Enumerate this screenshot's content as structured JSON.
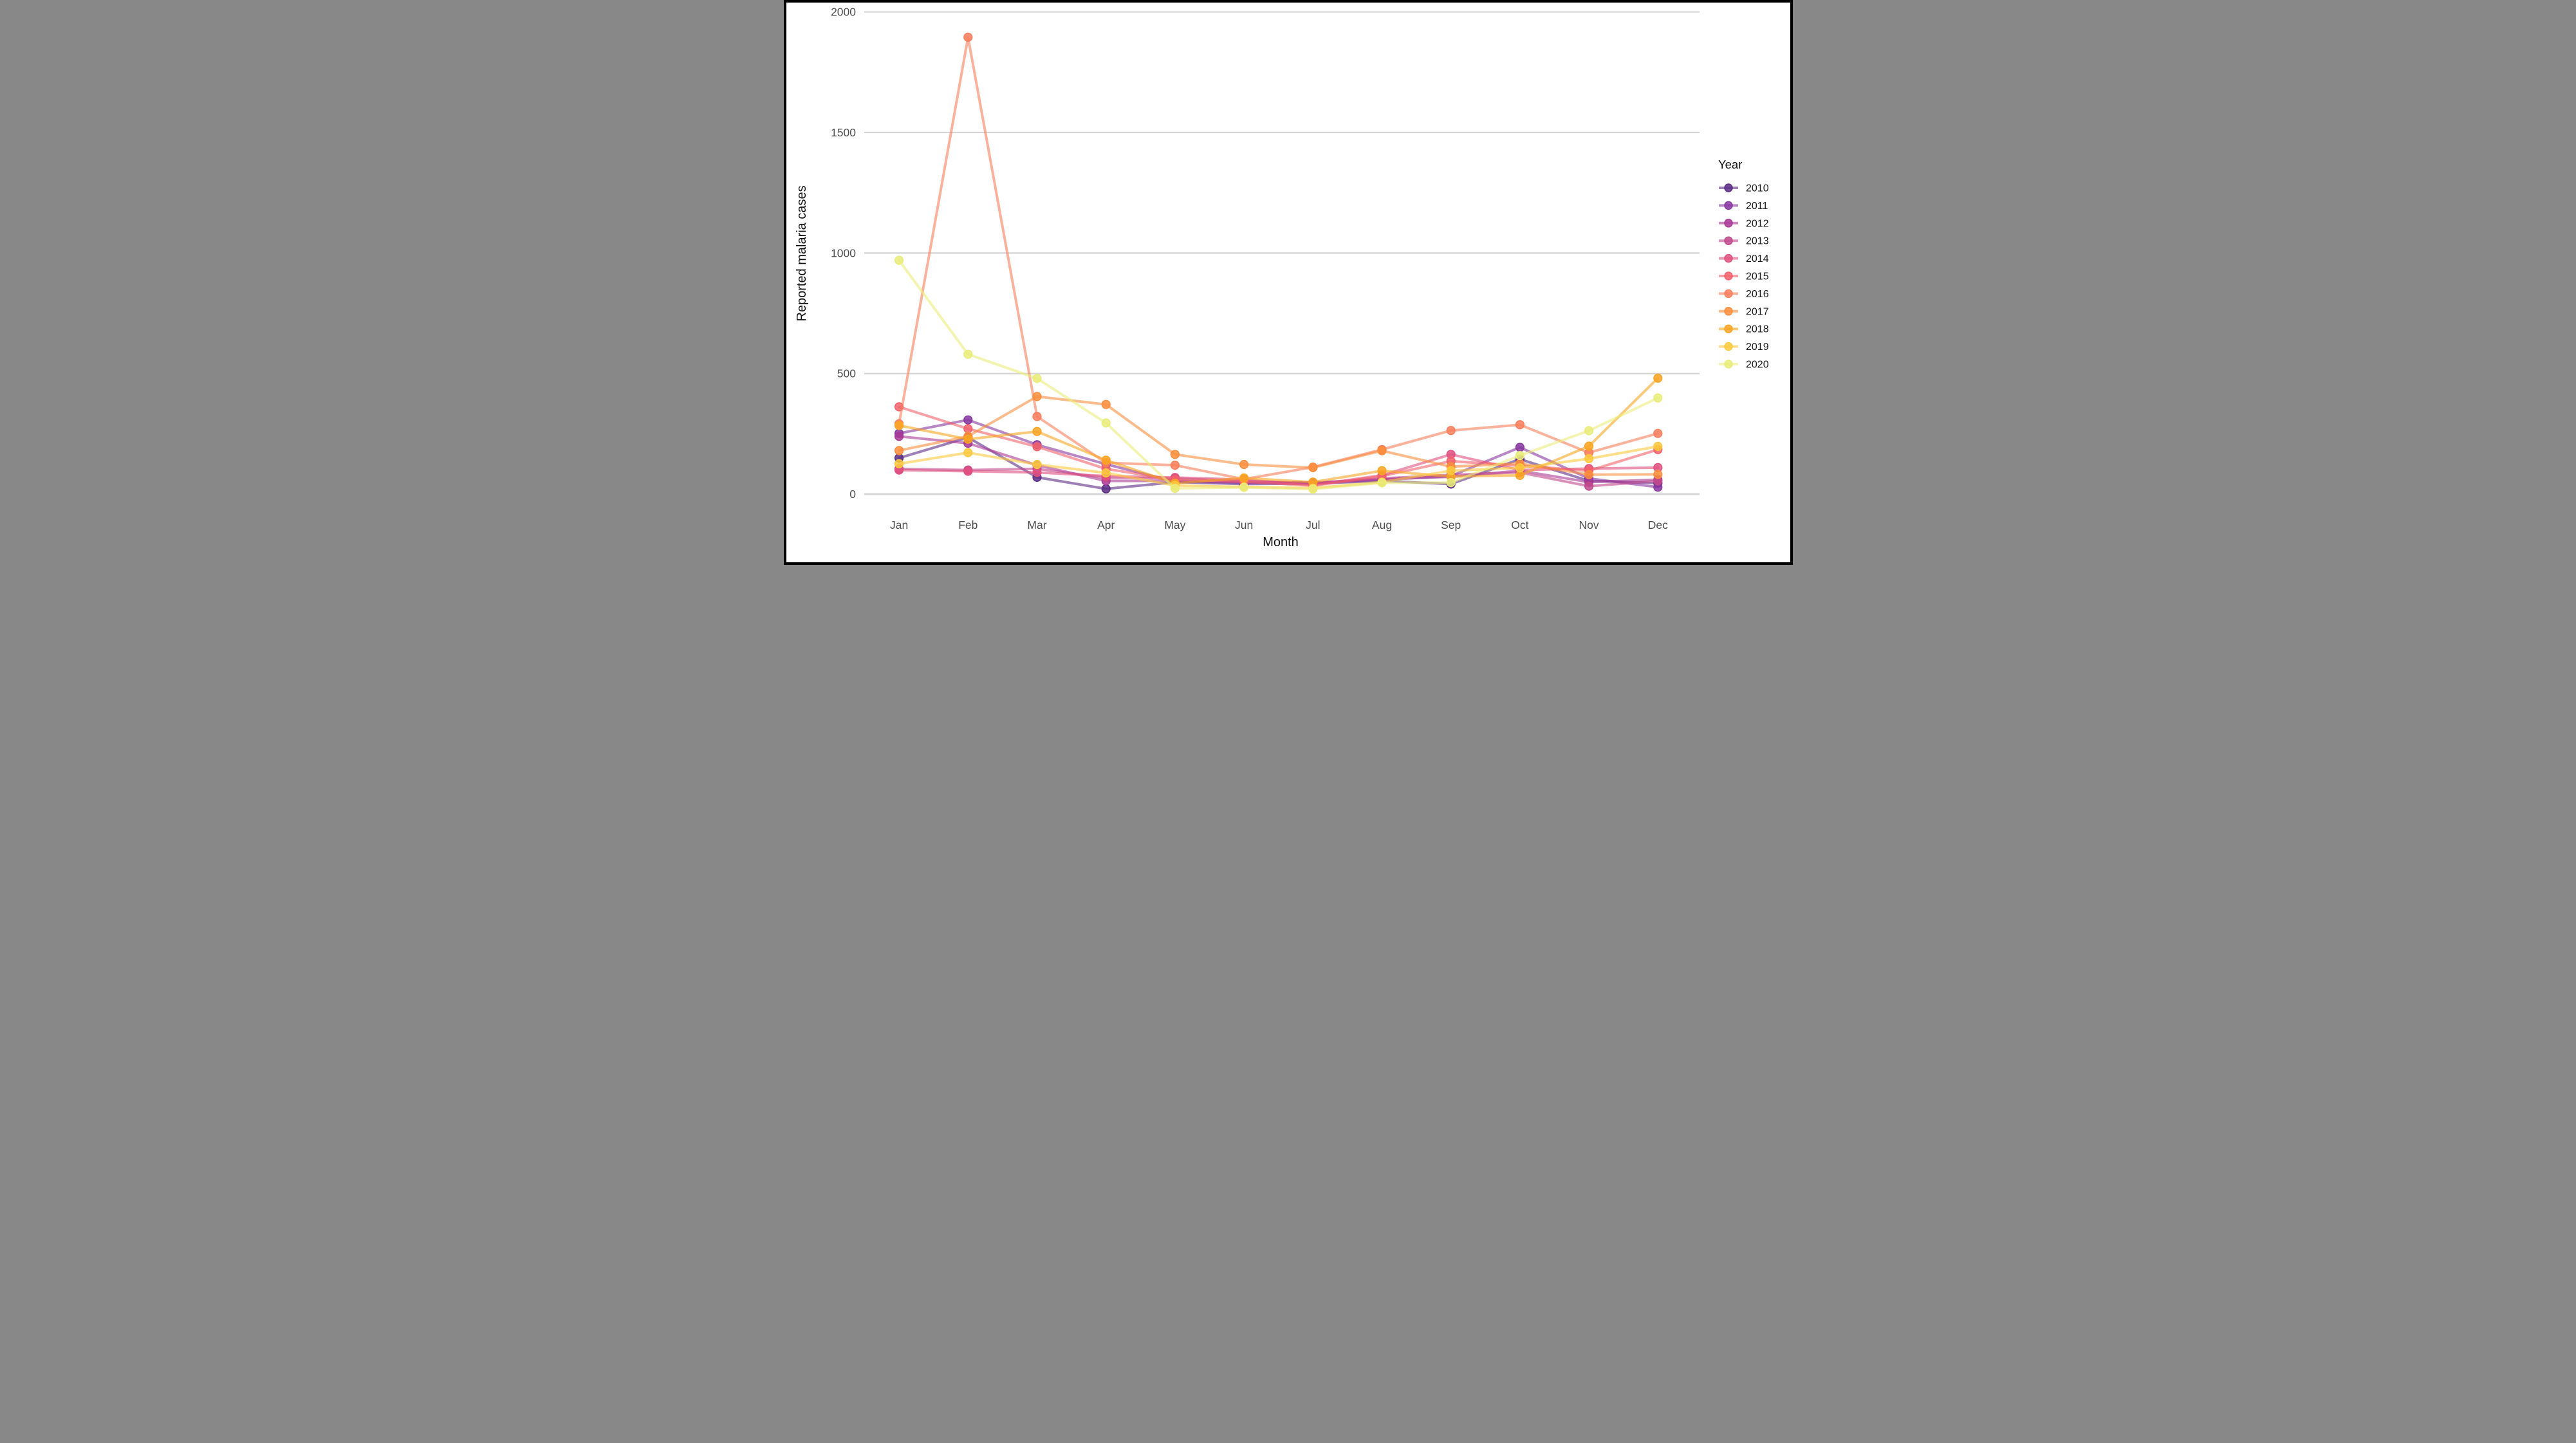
{
  "figure": {
    "background": "#ffffff",
    "border_color": "#000000",
    "grid_color": "#d4d4d4",
    "tick_label_color": "#4d4d4d",
    "axis_title_color": "#111111"
  },
  "chart_data": {
    "type": "line",
    "title": "",
    "xlabel": "Month",
    "ylabel": "Reported malaria cases",
    "legend_title": "Year",
    "legend_position": "right",
    "grid": "horizontal-major-only",
    "categories": [
      "Jan",
      "Feb",
      "Mar",
      "Apr",
      "May",
      "Jun",
      "Jul",
      "Aug",
      "Sep",
      "Oct",
      "Nov",
      "Dec"
    ],
    "yticks": [
      0,
      500,
      1000,
      1500,
      2000
    ],
    "ylim": [
      0,
      2000
    ],
    "marker": "circle",
    "line_opacity": 0.6,
    "point_opacity": 0.85,
    "series": [
      {
        "name": "2010",
        "color": "#5b2c85",
        "values": [
          150,
          235,
          70,
          22,
          50,
          42,
          44,
          55,
          42,
          145,
          55,
          46
        ]
      },
      {
        "name": "2011",
        "color": "#8737a0",
        "values": [
          252,
          308,
          205,
          124,
          52,
          48,
          46,
          60,
          75,
          194,
          65,
          29
        ]
      },
      {
        "name": "2012",
        "color": "#a83a96",
        "values": [
          240,
          211,
          120,
          55,
          55,
          50,
          48,
          62,
          72,
          97,
          50,
          60
        ]
      },
      {
        "name": "2013",
        "color": "#c14a8d",
        "values": [
          105,
          100,
          105,
          68,
          65,
          55,
          45,
          65,
          80,
          90,
          33,
          55
        ]
      },
      {
        "name": "2014",
        "color": "#e0517f",
        "values": [
          100,
          95,
          90,
          75,
          69,
          60,
          38,
          78,
          165,
          100,
          106,
          110
        ]
      },
      {
        "name": "2015",
        "color": "#f2616b",
        "values": [
          362,
          271,
          197,
          105,
          60,
          52,
          35,
          75,
          137,
          118,
          97,
          185
        ]
      },
      {
        "name": "2016",
        "color": "#f97e5c",
        "values": [
          292,
          1895,
          322,
          130,
          120,
          62,
          112,
          185,
          264,
          288,
          172,
          252
        ]
      },
      {
        "name": "2017",
        "color": "#fa8e3c",
        "values": [
          181,
          240,
          405,
          372,
          165,
          123,
          110,
          180,
          114,
          127,
          81,
          82
        ]
      },
      {
        "name": "2018",
        "color": "#f9a522",
        "values": [
          285,
          228,
          260,
          141,
          45,
          67,
          50,
          97,
          73,
          78,
          199,
          481
        ]
      },
      {
        "name": "2019",
        "color": "#fbc93d",
        "values": [
          126,
          172,
          123,
          88,
          36,
          30,
          25,
          50,
          97,
          109,
          147,
          198
        ]
      },
      {
        "name": "2020",
        "color": "#e9ec79",
        "values": [
          970,
          580,
          480,
          295,
          24,
          28,
          21,
          47,
          48,
          160,
          263,
          399
        ]
      }
    ]
  }
}
